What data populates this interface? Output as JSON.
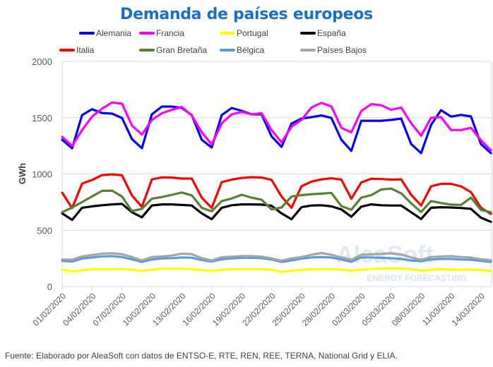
{
  "chart_data": {
    "type": "line",
    "title": "Demanda de países europeos",
    "xlabel": "",
    "ylabel": "GWh",
    "ylim": [
      0,
      2000
    ],
    "yticks": [
      0,
      500,
      1000,
      1500,
      2000
    ],
    "ytick_labels": [
      "0",
      "500",
      "1000",
      "1500",
      "2000"
    ],
    "grid": true,
    "legend_placement": "top",
    "x_tick_labels": [
      "01/02/2020",
      "04/02/2020",
      "07/02/2020",
      "10/02/2020",
      "13/02/2020",
      "16/02/2020",
      "19/02/2020",
      "22/02/2020",
      "25/02/2020",
      "28/02/2020",
      "02/03/2020",
      "05/03/2020",
      "08/03/2020",
      "11/03/2020",
      "14/03/2020"
    ],
    "x_tick_every_days": 3,
    "x_start": "01/02/2020",
    "x_end": "15/03/2020",
    "series": [
      {
        "name": "Alemania",
        "color": "#0000ff",
        "values": [
          1304,
          1229,
          1523,
          1575,
          1542,
          1536,
          1498,
          1310,
          1229,
          1530,
          1599,
          1599,
          1586,
          1523,
          1304,
          1235,
          1523,
          1586,
          1561,
          1530,
          1530,
          1335,
          1241,
          1448,
          1492,
          1505,
          1520,
          1498,
          1304,
          1205,
          1473,
          1473,
          1473,
          1480,
          1492,
          1266,
          1185,
          1436,
          1567,
          1510,
          1525,
          1511,
          1266,
          1185
        ]
      },
      {
        "name": "Francia",
        "color": "#ff00ff",
        "values": [
          1330,
          1250,
          1390,
          1510,
          1580,
          1635,
          1625,
          1430,
          1350,
          1480,
          1540,
          1570,
          1595,
          1520,
          1370,
          1262,
          1450,
          1530,
          1550,
          1530,
          1540,
          1390,
          1280,
          1420,
          1480,
          1590,
          1632,
          1600,
          1410,
          1370,
          1560,
          1620,
          1610,
          1570,
          1590,
          1450,
          1340,
          1500,
          1505,
          1390,
          1390,
          1410,
          1300,
          1210
        ]
      },
      {
        "name": "Portugal",
        "color": "#ffff00",
        "values": [
          150,
          135,
          145,
          155,
          155,
          155,
          155,
          150,
          140,
          150,
          158,
          158,
          158,
          155,
          145,
          140,
          150,
          155,
          155,
          155,
          155,
          150,
          130,
          140,
          148,
          155,
          155,
          155,
          150,
          140,
          150,
          155,
          160,
          160,
          160,
          155,
          140,
          150,
          155,
          150,
          150,
          150,
          145,
          140
        ]
      },
      {
        "name": "España",
        "color": "#000000",
        "values": [
          650,
          592,
          700,
          712,
          722,
          730,
          735,
          660,
          615,
          720,
          730,
          730,
          725,
          720,
          650,
          598,
          700,
          722,
          730,
          730,
          728,
          718,
          650,
          598,
          705,
          720,
          722,
          712,
          685,
          620,
          710,
          730,
          722,
          720,
          720,
          660,
          600,
          700,
          705,
          702,
          698,
          690,
          612,
          575
        ]
      },
      {
        "name": "Italia",
        "color": "#ff0000",
        "values": [
          834,
          696,
          915,
          947,
          990,
          997,
          988,
          809,
          708,
          952,
          970,
          968,
          959,
          959,
          790,
          698,
          928,
          950,
          965,
          972,
          968,
          948,
          800,
          700,
          890,
          932,
          952,
          962,
          950,
          780,
          925,
          958,
          955,
          950,
          952,
          815,
          720,
          890,
          912,
          912,
          890,
          838,
          700,
          645
        ]
      },
      {
        "name": "Gran Bretaña",
        "color": "#548235",
        "values": [
          660,
          702,
          750,
          800,
          850,
          852,
          800,
          670,
          690,
          780,
          795,
          815,
          835,
          810,
          700,
          668,
          760,
          782,
          815,
          790,
          772,
          685,
          702,
          800,
          812,
          820,
          825,
          832,
          715,
          682,
          790,
          812,
          862,
          870,
          828,
          740,
          662,
          760,
          742,
          728,
          725,
          790,
          680,
          660
        ]
      },
      {
        "name": "Bélgica",
        "color": "#5b9bd5",
        "values": [
          228,
          222,
          248,
          258,
          268,
          270,
          262,
          242,
          220,
          240,
          250,
          252,
          258,
          256,
          236,
          222,
          242,
          250,
          255,
          255,
          252,
          240,
          218,
          232,
          248,
          258,
          262,
          258,
          240,
          220,
          258,
          258,
          255,
          252,
          245,
          232,
          225,
          240,
          245,
          245,
          240,
          238,
          228,
          218
        ]
      },
      {
        "name": "Países Bajos",
        "color": "#a5a5a5",
        "values": [
          240,
          238,
          268,
          280,
          292,
          296,
          288,
          262,
          232,
          262,
          268,
          275,
          292,
          288,
          252,
          232,
          260,
          265,
          270,
          270,
          266,
          250,
          230,
          250,
          262,
          282,
          298,
          282,
          258,
          238,
          282,
          286,
          290,
          295,
          285,
          258,
          238,
          262,
          268,
          270,
          262,
          258,
          242,
          235
        ]
      }
    ]
  },
  "legend": [
    {
      "label": "Alemania",
      "color": "#0000ff"
    },
    {
      "label": "Francia",
      "color": "#ff00ff"
    },
    {
      "label": "Portugal",
      "color": "#ffff00"
    },
    {
      "label": "España",
      "color": "#000000"
    },
    {
      "label": "Italia",
      "color": "#ff0000"
    },
    {
      "label": "Gran Bretaña",
      "color": "#548235"
    },
    {
      "label": "Bélgica",
      "color": "#5b9bd5"
    },
    {
      "label": "Países Bajos",
      "color": "#a5a5a5"
    }
  ],
  "watermark": {
    "brand": "AleaSoft",
    "tagline": "ENERGY FORECASTING"
  },
  "source": "Fuente: Elaborado por AleaSoft con datos de ENTSO-E, RTE, REN, REE, TERNA, National Grid y ELIA."
}
